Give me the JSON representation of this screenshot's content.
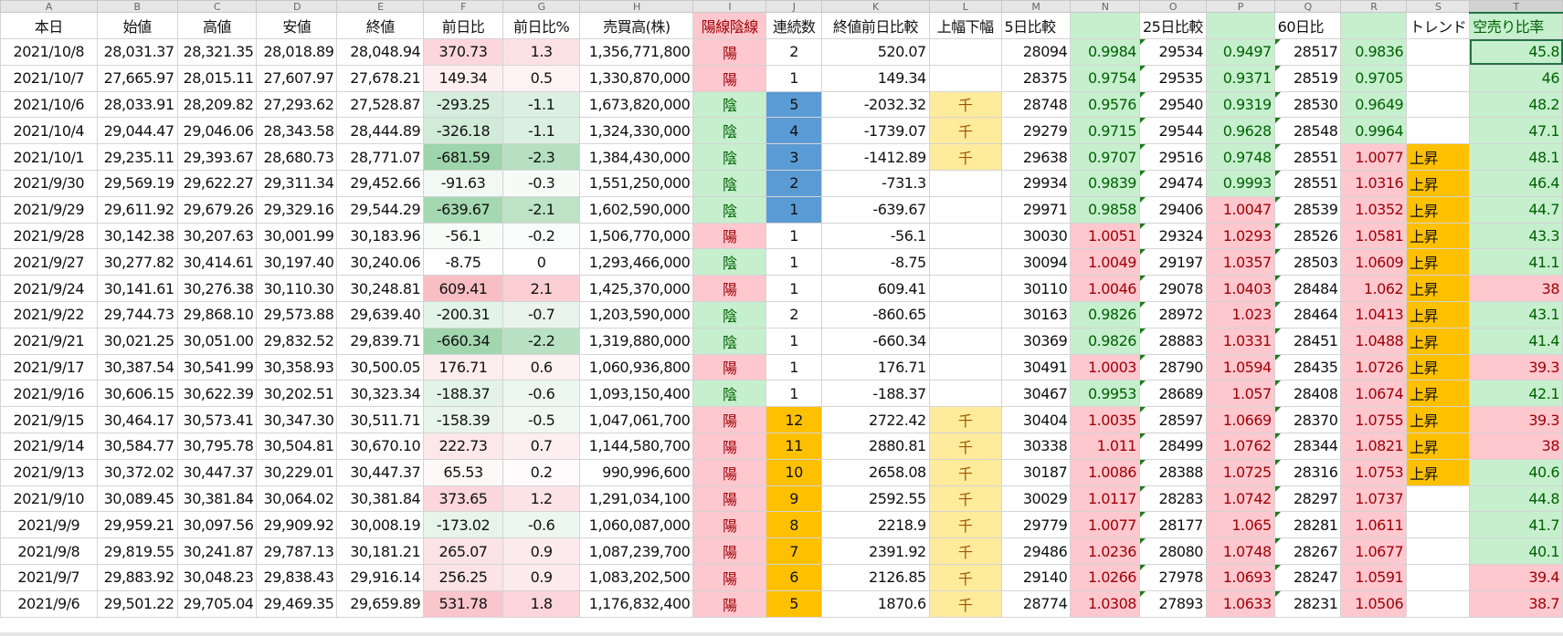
{
  "column_letters": [
    "A",
    "B",
    "C",
    "D",
    "E",
    "F",
    "G",
    "H",
    "I",
    "J",
    "K",
    "L",
    "M",
    "N",
    "O",
    "P",
    "Q",
    "R",
    "S",
    "T"
  ],
  "selected_column": "T",
  "selected_cell": "T3",
  "headers": [
    "本日",
    "始値",
    "高値",
    "安値",
    "終値",
    "前日比",
    "前日比%",
    "売買高(株)",
    "陽線陰線",
    "連続数",
    "終値前日比較",
    "上幅下幅",
    "5日比較",
    "",
    "25日比較",
    "",
    "60日比",
    "",
    "トレンド",
    "空売り比率"
  ],
  "colors": {
    "positive_fill": "#ffc7ce",
    "positive_text": "#9c0006",
    "negative_fill": "#c6efce",
    "negative_text": "#006100",
    "warning_fill": "#ffeb9c",
    "streak_down": "#5b9bd5",
    "streak_up": "#ffc000",
    "trend_fill": "#ffc000"
  },
  "rows": [
    [
      "2021/10/8",
      "28,031.37",
      "28,321.35",
      "28,018.89",
      "28,048.94",
      "370.73",
      "1.3",
      "1,356,771,800",
      "陽",
      "2",
      "520.07",
      "",
      "28094",
      "0.9984",
      "29534",
      "0.9497",
      "28517",
      "0.9836",
      "",
      "45.8"
    ],
    [
      "2021/10/7",
      "27,665.97",
      "28,015.11",
      "27,607.97",
      "27,678.21",
      "149.34",
      "0.5",
      "1,330,870,000",
      "陽",
      "1",
      "149.34",
      "",
      "28375",
      "0.9754",
      "29535",
      "0.9371",
      "28519",
      "0.9705",
      "",
      "46"
    ],
    [
      "2021/10/6",
      "28,033.91",
      "28,209.82",
      "27,293.62",
      "27,528.87",
      "-293.25",
      "-1.1",
      "1,673,820,000",
      "陰",
      "5",
      "-2032.32",
      "千",
      "28748",
      "0.9576",
      "29540",
      "0.9319",
      "28530",
      "0.9649",
      "",
      "48.2"
    ],
    [
      "2021/10/4",
      "29,044.47",
      "29,046.06",
      "28,343.58",
      "28,444.89",
      "-326.18",
      "-1.1",
      "1,324,330,000",
      "陰",
      "4",
      "-1739.07",
      "千",
      "29279",
      "0.9715",
      "29544",
      "0.9628",
      "28548",
      "0.9964",
      "",
      "47.1"
    ],
    [
      "2021/10/1",
      "29,235.11",
      "29,393.67",
      "28,680.73",
      "28,771.07",
      "-681.59",
      "-2.3",
      "1,384,430,000",
      "陰",
      "3",
      "-1412.89",
      "千",
      "29638",
      "0.9707",
      "29516",
      "0.9748",
      "28551",
      "1.0077",
      "上昇",
      "48.1"
    ],
    [
      "2021/9/30",
      "29,569.19",
      "29,622.27",
      "29,311.34",
      "29,452.66",
      "-91.63",
      "-0.3",
      "1,551,250,000",
      "陰",
      "2",
      "-731.3",
      "",
      "29934",
      "0.9839",
      "29474",
      "0.9993",
      "28551",
      "1.0316",
      "上昇",
      "46.4"
    ],
    [
      "2021/9/29",
      "29,611.92",
      "29,679.26",
      "29,329.16",
      "29,544.29",
      "-639.67",
      "-2.1",
      "1,602,590,000",
      "陰",
      "1",
      "-639.67",
      "",
      "29971",
      "0.9858",
      "29406",
      "1.0047",
      "28539",
      "1.0352",
      "上昇",
      "44.7"
    ],
    [
      "2021/9/28",
      "30,142.38",
      "30,207.63",
      "30,001.99",
      "30,183.96",
      "-56.1",
      "-0.2",
      "1,506,770,000",
      "陽",
      "1",
      "-56.1",
      "",
      "30030",
      "1.0051",
      "29324",
      "1.0293",
      "28526",
      "1.0581",
      "上昇",
      "43.3"
    ],
    [
      "2021/9/27",
      "30,277.82",
      "30,414.61",
      "30,197.40",
      "30,240.06",
      "-8.75",
      "0",
      "1,293,466,000",
      "陰",
      "1",
      "-8.75",
      "",
      "30094",
      "1.0049",
      "29197",
      "1.0357",
      "28503",
      "1.0609",
      "上昇",
      "41.1"
    ],
    [
      "2021/9/24",
      "30,141.61",
      "30,276.38",
      "30,110.30",
      "30,248.81",
      "609.41",
      "2.1",
      "1,425,370,000",
      "陽",
      "1",
      "609.41",
      "",
      "30110",
      "1.0046",
      "29078",
      "1.0403",
      "28484",
      "1.062",
      "上昇",
      "38"
    ],
    [
      "2021/9/22",
      "29,744.73",
      "29,868.10",
      "29,573.88",
      "29,639.40",
      "-200.31",
      "-0.7",
      "1,203,590,000",
      "陰",
      "2",
      "-860.65",
      "",
      "30163",
      "0.9826",
      "28972",
      "1.023",
      "28464",
      "1.0413",
      "上昇",
      "43.1"
    ],
    [
      "2021/9/21",
      "30,021.25",
      "30,051.00",
      "29,832.52",
      "29,839.71",
      "-660.34",
      "-2.2",
      "1,319,880,000",
      "陰",
      "1",
      "-660.34",
      "",
      "30369",
      "0.9826",
      "28883",
      "1.0331",
      "28451",
      "1.0488",
      "上昇",
      "41.4"
    ],
    [
      "2021/9/17",
      "30,387.54",
      "30,541.99",
      "30,358.93",
      "30,500.05",
      "176.71",
      "0.6",
      "1,060,936,800",
      "陽",
      "1",
      "176.71",
      "",
      "30491",
      "1.0003",
      "28790",
      "1.0594",
      "28435",
      "1.0726",
      "上昇",
      "39.3"
    ],
    [
      "2021/9/16",
      "30,606.15",
      "30,622.39",
      "30,202.51",
      "30,323.34",
      "-188.37",
      "-0.6",
      "1,093,150,400",
      "陰",
      "1",
      "-188.37",
      "",
      "30467",
      "0.9953",
      "28689",
      "1.057",
      "28408",
      "1.0674",
      "上昇",
      "42.1"
    ],
    [
      "2021/9/15",
      "30,464.17",
      "30,573.41",
      "30,347.30",
      "30,511.71",
      "-158.39",
      "-0.5",
      "1,047,061,700",
      "陽",
      "12",
      "2722.42",
      "千",
      "30404",
      "1.0035",
      "28597",
      "1.0669",
      "28370",
      "1.0755",
      "上昇",
      "39.3"
    ],
    [
      "2021/9/14",
      "30,584.77",
      "30,795.78",
      "30,504.81",
      "30,670.10",
      "222.73",
      "0.7",
      "1,144,580,700",
      "陽",
      "11",
      "2880.81",
      "千",
      "30338",
      "1.011",
      "28499",
      "1.0762",
      "28344",
      "1.0821",
      "上昇",
      "38"
    ],
    [
      "2021/9/13",
      "30,372.02",
      "30,447.37",
      "30,229.01",
      "30,447.37",
      "65.53",
      "0.2",
      "990,996,600",
      "陽",
      "10",
      "2658.08",
      "千",
      "30187",
      "1.0086",
      "28388",
      "1.0725",
      "28316",
      "1.0753",
      "上昇",
      "40.6"
    ],
    [
      "2021/9/10",
      "30,089.45",
      "30,381.84",
      "30,064.02",
      "30,381.84",
      "373.65",
      "1.2",
      "1,291,034,100",
      "陽",
      "9",
      "2592.55",
      "千",
      "30029",
      "1.0117",
      "28283",
      "1.0742",
      "28297",
      "1.0737",
      "",
      "44.8"
    ],
    [
      "2021/9/9",
      "29,959.21",
      "30,097.56",
      "29,909.92",
      "30,008.19",
      "-173.02",
      "-0.6",
      "1,060,087,000",
      "陽",
      "8",
      "2218.9",
      "千",
      "29779",
      "1.0077",
      "28177",
      "1.065",
      "28281",
      "1.0611",
      "",
      "41.7"
    ],
    [
      "2021/9/8",
      "29,819.55",
      "30,241.87",
      "29,787.13",
      "30,181.21",
      "265.07",
      "0.9",
      "1,087,239,700",
      "陽",
      "7",
      "2391.92",
      "千",
      "29486",
      "1.0236",
      "28080",
      "1.0748",
      "28267",
      "1.0677",
      "",
      "40.1"
    ],
    [
      "2021/9/7",
      "29,883.92",
      "30,048.23",
      "29,838.43",
      "29,916.14",
      "256.25",
      "0.9",
      "1,083,202,500",
      "陽",
      "6",
      "2126.85",
      "千",
      "29140",
      "1.0266",
      "27978",
      "1.0693",
      "28247",
      "1.0591",
      "",
      "39.4"
    ],
    [
      "2021/9/6",
      "29,501.22",
      "29,705.04",
      "29,469.35",
      "29,659.89",
      "531.78",
      "1.8",
      "1,176,832,400",
      "陽",
      "5",
      "1870.6",
      "千",
      "28774",
      "1.0308",
      "27893",
      "1.0633",
      "28231",
      "1.0506",
      "",
      "38.7"
    ]
  ]
}
